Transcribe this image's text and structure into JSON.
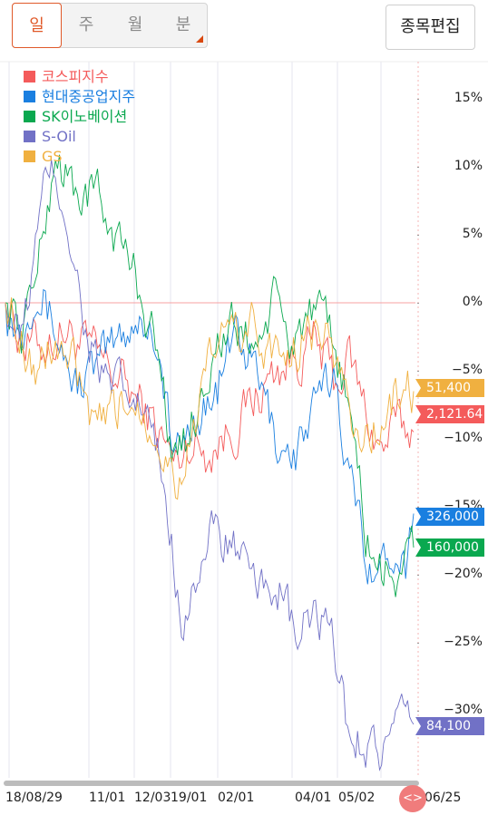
{
  "tabs": {
    "items": [
      {
        "label": "일",
        "active": true
      },
      {
        "label": "주",
        "active": false
      },
      {
        "label": "월",
        "active": false
      },
      {
        "label": "분",
        "active": false
      }
    ],
    "edit_label": "종목편집"
  },
  "colors": {
    "kospi": "#f45b5b",
    "hyundai": "#1a7fe0",
    "sk": "#0aa84f",
    "soil": "#7171c6",
    "gs": "#f0b040",
    "zero_line": "#f7a0a0"
  },
  "icons": {
    "scroll_handle": "chevron-left-right-icon",
    "seg_corner": "dropdown-triangle-icon"
  },
  "scroll_handle_label": "<>",
  "chart_data": {
    "type": "line",
    "x_labels": [
      "18/08/29",
      "11/01",
      "12/03",
      "19/01",
      "02/01",
      "04/01",
      "05/02",
      "06/25"
    ],
    "y_ticks": [
      "15%",
      "10%",
      "5%",
      "0%",
      "−5%",
      "−10%",
      "−15%",
      "−20%",
      "−25%",
      "−30%"
    ],
    "y_values": [
      15,
      10,
      5,
      0,
      -5,
      -10,
      -15,
      -20,
      -25,
      -30
    ],
    "ylim": [
      -34,
      18
    ],
    "n_days": 205,
    "grid": "vertical",
    "legend_position": "top-left",
    "series": [
      {
        "name": "코스피지수",
        "color_key": "kospi",
        "last_label": "2,121.64",
        "keypoints": [
          [
            0,
            0
          ],
          [
            10,
            -3
          ],
          [
            20,
            -3
          ],
          [
            30,
            -2
          ],
          [
            45,
            -4
          ],
          [
            60,
            -6
          ],
          [
            75,
            -9
          ],
          [
            85,
            -12
          ],
          [
            92,
            -10
          ],
          [
            100,
            -11
          ],
          [
            115,
            -9
          ],
          [
            125,
            -7
          ],
          [
            135,
            -5
          ],
          [
            145,
            -4
          ],
          [
            155,
            -3
          ],
          [
            165,
            -6
          ],
          [
            172,
            -4
          ],
          [
            180,
            -8
          ],
          [
            188,
            -11
          ],
          [
            195,
            -9
          ],
          [
            205,
            -9.5
          ]
        ]
      },
      {
        "name": "현대중공업지주",
        "color_key": "hyundai",
        "last_label": "326,000",
        "keypoints": [
          [
            0,
            0
          ],
          [
            8,
            -2
          ],
          [
            15,
            2
          ],
          [
            25,
            -2
          ],
          [
            35,
            -6
          ],
          [
            45,
            -5
          ],
          [
            55,
            -3
          ],
          [
            65,
            -1
          ],
          [
            75,
            -2
          ],
          [
            85,
            -12
          ],
          [
            95,
            -8
          ],
          [
            105,
            -7
          ],
          [
            115,
            -2
          ],
          [
            125,
            -5
          ],
          [
            135,
            -10
          ],
          [
            145,
            -11
          ],
          [
            155,
            -8
          ],
          [
            165,
            -5
          ],
          [
            172,
            -13
          ],
          [
            180,
            -18
          ],
          [
            188,
            -20
          ],
          [
            195,
            -17
          ],
          [
            200,
            -19
          ],
          [
            205,
            -15.5
          ]
        ]
      },
      {
        "name": "SK이노베이션",
        "color_key": "sk",
        "last_label": "160,000",
        "keypoints": [
          [
            0,
            0
          ],
          [
            8,
            -2
          ],
          [
            18,
            4
          ],
          [
            25,
            11
          ],
          [
            35,
            8
          ],
          [
            45,
            8
          ],
          [
            55,
            5
          ],
          [
            65,
            2
          ],
          [
            75,
            -3
          ],
          [
            85,
            -12
          ],
          [
            95,
            -8
          ],
          [
            105,
            -3
          ],
          [
            115,
            -2
          ],
          [
            125,
            -3
          ],
          [
            135,
            0
          ],
          [
            142,
            -3
          ],
          [
            150,
            -1
          ],
          [
            160,
            -2
          ],
          [
            168,
            -5
          ],
          [
            175,
            -11
          ],
          [
            180,
            -17
          ],
          [
            188,
            -20
          ],
          [
            195,
            -20
          ],
          [
            205,
            -18
          ]
        ]
      },
      {
        "name": "S-Oil",
        "color_key": "soil",
        "last_label": "84,100",
        "keypoints": [
          [
            0,
            0
          ],
          [
            8,
            -3
          ],
          [
            15,
            4
          ],
          [
            22,
            10
          ],
          [
            30,
            7
          ],
          [
            40,
            -2
          ],
          [
            50,
            -6
          ],
          [
            60,
            -7
          ],
          [
            70,
            -8
          ],
          [
            80,
            -14
          ],
          [
            88,
            -23
          ],
          [
            95,
            -20
          ],
          [
            105,
            -17
          ],
          [
            115,
            -18
          ],
          [
            125,
            -22
          ],
          [
            135,
            -20
          ],
          [
            145,
            -25
          ],
          [
            155,
            -23
          ],
          [
            165,
            -26
          ],
          [
            172,
            -32
          ],
          [
            180,
            -32
          ],
          [
            188,
            -33
          ],
          [
            195,
            -32
          ],
          [
            205,
            -31
          ]
        ]
      },
      {
        "name": "GS",
        "color_key": "gs",
        "last_label": "51,400",
        "keypoints": [
          [
            0,
            0
          ],
          [
            8,
            -2
          ],
          [
            15,
            -5
          ],
          [
            25,
            -3
          ],
          [
            35,
            -5
          ],
          [
            45,
            -10
          ],
          [
            55,
            -8
          ],
          [
            65,
            -7
          ],
          [
            75,
            -9
          ],
          [
            85,
            -13
          ],
          [
            95,
            -9
          ],
          [
            105,
            -3
          ],
          [
            115,
            -2
          ],
          [
            125,
            -2
          ],
          [
            135,
            -4
          ],
          [
            145,
            -3
          ],
          [
            155,
            -2
          ],
          [
            165,
            -4
          ],
          [
            172,
            -8
          ],
          [
            180,
            -10
          ],
          [
            188,
            -9
          ],
          [
            195,
            -7
          ],
          [
            205,
            -6.5
          ]
        ]
      }
    ]
  }
}
